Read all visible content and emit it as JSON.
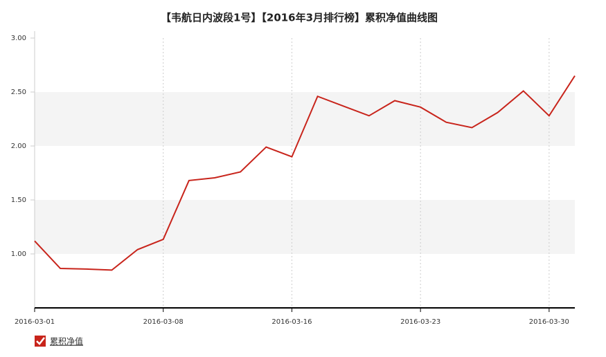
{
  "chart_data": {
    "type": "line",
    "title": "【韦航日内波段1号】【2016年3月排行榜】累积净值曲线图",
    "categories": [
      "2016-03-01",
      null,
      null,
      null,
      null,
      "2016-03-08",
      null,
      null,
      null,
      null,
      "2016-03-16",
      null,
      null,
      null,
      null,
      "2016-03-23",
      null,
      null,
      null,
      null,
      "2016-03-30",
      null
    ],
    "series": [
      {
        "name": "累积净值",
        "color": "#c8241b",
        "values": [
          1.12,
          0.865,
          0.86,
          0.85,
          1.04,
          1.135,
          1.68,
          1.705,
          1.76,
          1.99,
          1.9,
          2.46,
          2.37,
          2.28,
          2.42,
          2.36,
          2.22,
          2.17,
          2.31,
          2.51,
          2.28,
          2.65
        ]
      }
    ],
    "ylim": [
      0.5,
      3.0
    ],
    "yticks": [
      {
        "value": 1.0,
        "label": "1.00"
      },
      {
        "value": 1.5,
        "label": "1.50"
      },
      {
        "value": 2.0,
        "label": "2.00"
      },
      {
        "value": 2.5,
        "label": "2.50"
      },
      {
        "value": 3.0,
        "label": "3.00"
      }
    ],
    "band_color": "#f4f4f4",
    "grid": true,
    "legend": "bottom-left"
  }
}
